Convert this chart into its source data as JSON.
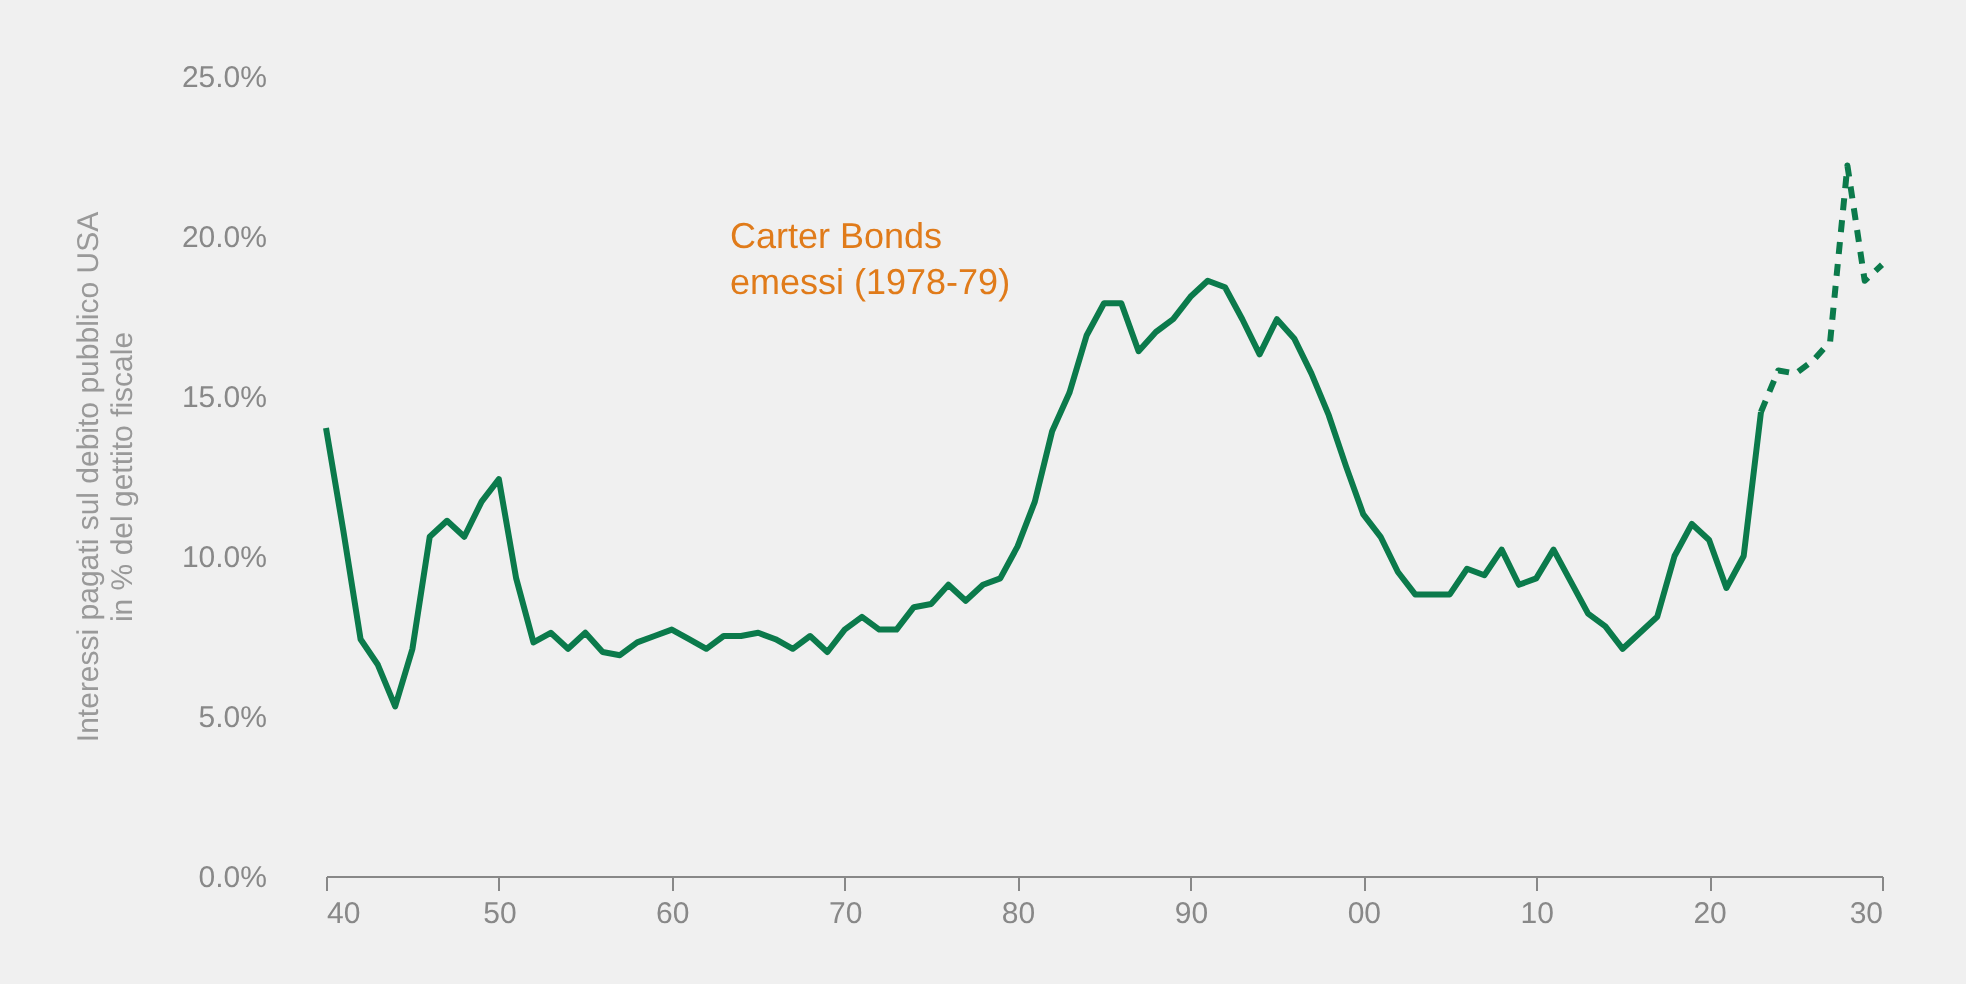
{
  "chart_data": {
    "type": "line",
    "ylabel": "Interessi pagati sul debito pubblico USA\nin % del gettito fiscale",
    "annotations": [
      "Carter Bonds\nemessi (1978-79)"
    ],
    "x": [
      1940,
      1941,
      1942,
      1943,
      1944,
      1945,
      1946,
      1947,
      1948,
      1949,
      1950,
      1951,
      1952,
      1953,
      1954,
      1955,
      1956,
      1957,
      1958,
      1959,
      1960,
      1961,
      1962,
      1963,
      1964,
      1965,
      1966,
      1967,
      1968,
      1969,
      1970,
      1971,
      1972,
      1973,
      1974,
      1975,
      1976,
      1977,
      1978,
      1979,
      1980,
      1981,
      1982,
      1983,
      1984,
      1985,
      1986,
      1987,
      1988,
      1989,
      1990,
      1991,
      1992,
      1993,
      1994,
      1995,
      1996,
      1997,
      1998,
      1999,
      2000,
      2001,
      2002,
      2003,
      2004,
      2005,
      2006,
      2007,
      2008,
      2009,
      2010,
      2011,
      2012,
      2013,
      2014,
      2015,
      2016,
      2017,
      2018,
      2019,
      2020,
      2021,
      2022,
      2023
    ],
    "series": [
      {
        "color": "#0b7a4b",
        "line_style": "solid",
        "values": [
          14.0,
          10.8,
          7.4,
          6.6,
          5.3,
          7.1,
          10.6,
          11.1,
          10.6,
          11.7,
          12.4,
          9.3,
          7.3,
          7.6,
          7.1,
          7.6,
          7.0,
          6.9,
          7.3,
          7.5,
          7.7,
          7.4,
          7.1,
          7.5,
          7.5,
          7.6,
          7.4,
          7.1,
          7.5,
          7.0,
          7.7,
          8.1,
          7.7,
          7.7,
          8.4,
          8.5,
          9.1,
          8.6,
          9.1,
          9.3,
          10.3,
          11.7,
          13.9,
          15.1,
          16.9,
          17.9,
          17.9,
          16.4,
          17.0,
          17.4,
          18.1,
          18.6,
          18.4,
          17.4,
          16.3,
          17.4,
          16.8,
          15.7,
          14.4,
          12.8,
          11.3,
          10.6,
          9.5,
          8.8,
          8.8,
          8.8,
          9.6,
          9.4,
          10.2,
          9.1,
          9.3,
          10.2,
          9.2,
          8.2,
          7.8,
          7.1,
          7.6,
          8.1,
          10.0,
          11.0,
          10.5,
          9.0,
          10.0,
          14.5
        ]
      },
      {
        "color": "#0b7a4b",
        "line_style": "dashed",
        "x": [
          2023,
          2024,
          2025,
          2026,
          2027,
          2028,
          2029,
          2030
        ],
        "values": [
          14.5,
          15.8,
          15.7,
          16.1,
          16.7,
          22.2,
          18.6,
          19.1
        ]
      }
    ],
    "xlim": [
      1940,
      2030
    ],
    "xticks": [
      {
        "value": 1940,
        "label": "40"
      },
      {
        "value": 1950,
        "label": "50"
      },
      {
        "value": 1960,
        "label": "60"
      },
      {
        "value": 1970,
        "label": "70"
      },
      {
        "value": 1980,
        "label": "80"
      },
      {
        "value": 1990,
        "label": "90"
      },
      {
        "value": 2000,
        "label": "00"
      },
      {
        "value": 2010,
        "label": "10"
      },
      {
        "value": 2020,
        "label": "20"
      },
      {
        "value": 2030,
        "label": "30"
      }
    ],
    "ylim": [
      0,
      25
    ],
    "yticks": [
      {
        "value": 0,
        "label": "0.0%"
      },
      {
        "value": 5,
        "label": "5.0%"
      },
      {
        "value": 10,
        "label": "10.0%"
      },
      {
        "value": 15,
        "label": "15.0%"
      },
      {
        "value": 20,
        "label": "20.0%"
      },
      {
        "value": 25,
        "label": "25.0%"
      }
    ],
    "grid": false
  }
}
